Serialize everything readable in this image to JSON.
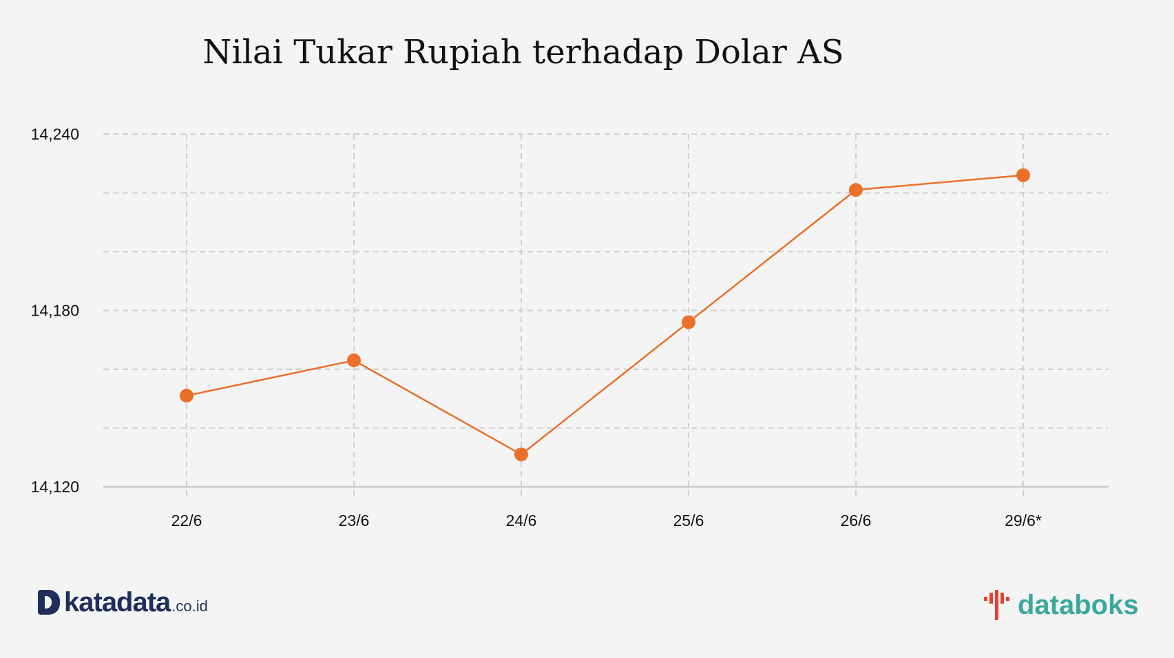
{
  "title": "Nilai Tukar Rupiah terhadap Dolar AS",
  "chart_data": {
    "type": "line",
    "title": "Nilai Tukar Rupiah terhadap Dolar AS",
    "xlabel": "",
    "ylabel": "",
    "categories": [
      "22/6",
      "23/6",
      "24/6",
      "25/6",
      "26/6",
      "29/6*"
    ],
    "series": [
      {
        "name": "",
        "values": [
          14151,
          14163,
          14131,
          14176,
          14221,
          14226
        ],
        "color": "#ec6f2a"
      }
    ],
    "ylim": [
      14120,
      14240
    ],
    "yticks": [
      14120,
      14180,
      14240
    ],
    "ytick_labels": [
      "14,120",
      "14,180",
      "14,240"
    ],
    "ygrid_values": [
      14140,
      14160,
      14180,
      14200,
      14220,
      14240
    ],
    "grid": true
  },
  "logos": {
    "left_name": "katadata",
    "left_suffix": ".co.id",
    "right_name": "databoks"
  },
  "colors": {
    "line": "#ec6f2a",
    "grid": "#cfcfcf",
    "background": "#f4f4f4",
    "katadata_brand": "#1f2f5a",
    "databoks_brand": "#3aa89c",
    "databoks_accent": "#e8402f"
  }
}
